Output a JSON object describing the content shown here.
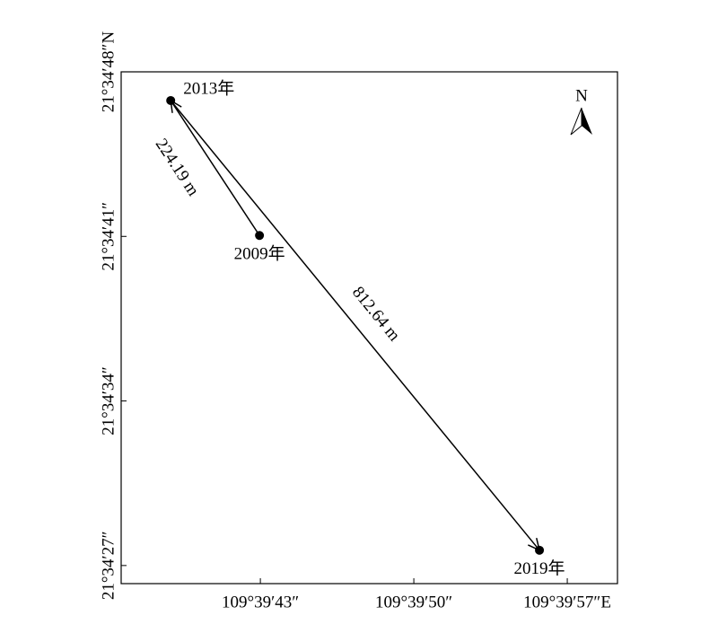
{
  "chart_data": {
    "type": "scatter",
    "x": [
      42.96,
      38.91,
      55.73
    ],
    "values": [
      41.04,
      46.78,
      27.65
    ],
    "point_labels": [
      "2009年",
      "2013年",
      "2019年"
    ],
    "annotations": [
      "224.19 m",
      "812.64 m"
    ],
    "color": "#000000",
    "north_label": "N",
    "xlim": [
      36.65,
      59.29
    ],
    "xticks": [
      {
        "value": 43,
        "label": "109°39′43″"
      },
      {
        "value": 50,
        "label": "109°39′50″"
      },
      {
        "value": 57,
        "label": "109°39′57″E"
      }
    ],
    "ylim": [
      26.23,
      48
    ],
    "yticks": [
      {
        "value": 27,
        "label": "21°34′27″"
      },
      {
        "value": 34,
        "label": "21°34′34″"
      },
      {
        "value": 41,
        "label": "21°34′41″"
      },
      {
        "value": 48,
        "label": "21°34′48″N"
      }
    ]
  }
}
